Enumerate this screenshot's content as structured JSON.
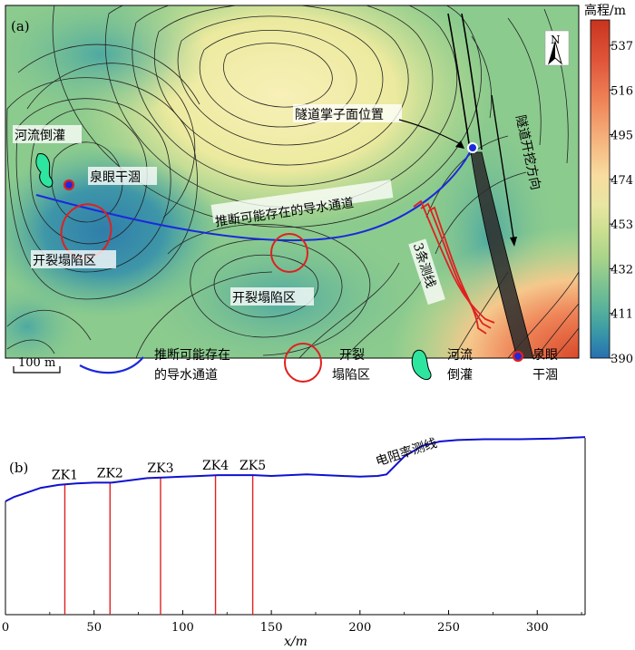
{
  "panel_a": {
    "label": "(a)",
    "north": "N",
    "colorbar": {
      "title": "高程/m",
      "ticks": [
        "537",
        "516",
        "495",
        "474",
        "453",
        "432",
        "411",
        "390"
      ],
      "colors": [
        "#c8341f",
        "#e0553a",
        "#ef8458",
        "#f5b57f",
        "#f8dca0",
        "#e8e6a2",
        "#c9de8f",
        "#a6d38a",
        "#7fc391",
        "#5bb39a",
        "#3e9ea4",
        "#2f86ac",
        "#2a6fb0"
      ]
    },
    "labels": {
      "tunnel_face": "隧道掌子面位置",
      "river": "河流倒灌",
      "spring": "泉眼干涸",
      "channel": "推断可能存在的导水通道",
      "direction": "隧道开挖方向",
      "collapse1": "开裂塌陷区",
      "collapse2": "开裂塌陷区",
      "lines": "3条测线"
    }
  },
  "legend": {
    "scale": "100 m",
    "channel": [
      "推断可能存在",
      "的导水通道"
    ],
    "collapse": [
      "开裂",
      "塌陷区"
    ],
    "river": [
      "河流",
      "倒灌"
    ],
    "spring": [
      "泉眼",
      "干涸"
    ]
  },
  "panel_b": {
    "label": "(b)",
    "profile_label": "电阻率测线",
    "xlabel": "x/m"
  },
  "chart_data": {
    "type": "line",
    "title": "",
    "xlabel": "x/m",
    "ylabel": "",
    "xlim": [
      0,
      327
    ],
    "xticks": [
      0,
      50,
      100,
      150,
      200,
      250,
      300
    ],
    "series": [
      {
        "name": "电阻率测线",
        "x": [
          0,
          5,
          10,
          20,
          30,
          40,
          50,
          60,
          70,
          80,
          90,
          100,
          110,
          120,
          130,
          140,
          150,
          160,
          170,
          180,
          190,
          200,
          210,
          215,
          225,
          235,
          245,
          255,
          270,
          290,
          310,
          327
        ],
        "y": [
          0,
          3,
          5,
          9,
          11,
          12,
          12.5,
          12.5,
          14,
          15.5,
          16,
          16.5,
          17,
          17.5,
          17.5,
          17.5,
          17,
          17.5,
          18,
          17.5,
          17,
          16.5,
          17,
          18,
          30,
          37,
          40,
          41,
          41.5,
          41.5,
          42,
          43
        ]
      }
    ],
    "boreholes": [
      {
        "name": "ZK1",
        "x": 33.5
      },
      {
        "name": "ZK2",
        "x": 59
      },
      {
        "name": "ZK3",
        "x": 87.5
      },
      {
        "name": "ZK4",
        "x": 118.5
      },
      {
        "name": "ZK5",
        "x": 139.5
      }
    ],
    "borehole_color": "#e02020",
    "line_color": "#1010d0"
  }
}
